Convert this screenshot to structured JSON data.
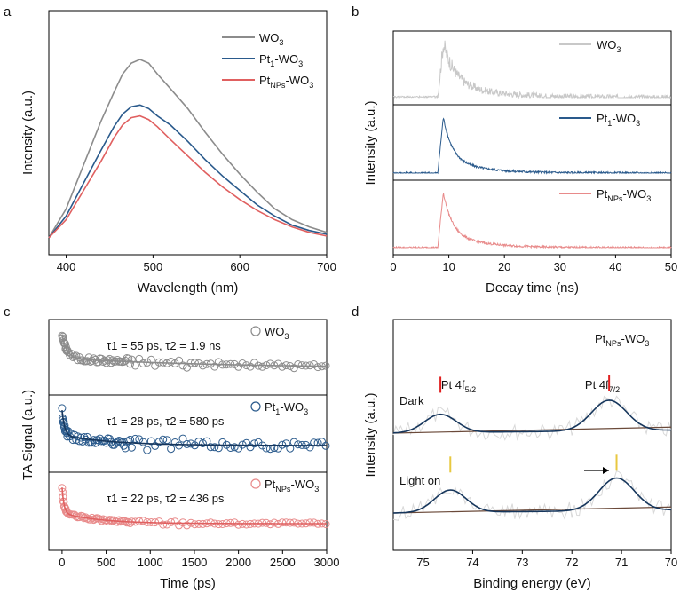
{
  "colors": {
    "gray": "#8c8c8c",
    "lightgray": "#c8c8c8",
    "blue": "#2a5a8c",
    "red": "#e06060",
    "redlight": "#e88a8a",
    "navy": "#16365c",
    "brown": "#6b4a3a",
    "vred": "#e02020",
    "vyellow": "#e8c840"
  },
  "chart_data": [
    {
      "panel": "a",
      "type": "line",
      "xlabel": "Wavelength (nm)",
      "ylabel": "Intensity (a.u.)",
      "xlim": [
        380,
        700
      ],
      "xticks": [
        "400",
        "500",
        "600",
        "700"
      ],
      "legend": [
        {
          "base": "WO",
          "sub": "3",
          "rest": "",
          "sub2": ""
        },
        {
          "base": "Pt",
          "sub": "1",
          "rest": "-WO",
          "sub2": "3"
        },
        {
          "base": "Pt",
          "sub": "NPs",
          "rest": "-WO",
          "sub2": "3"
        }
      ],
      "series": [
        {
          "name": "WO3",
          "color": "gray",
          "x": [
            380,
            400,
            420,
            440,
            455,
            465,
            475,
            485,
            495,
            505,
            520,
            540,
            560,
            580,
            600,
            620,
            640,
            660,
            680,
            700
          ],
          "y": [
            0.02,
            0.18,
            0.42,
            0.66,
            0.82,
            0.92,
            0.98,
            1.0,
            0.98,
            0.92,
            0.84,
            0.73,
            0.6,
            0.48,
            0.37,
            0.27,
            0.18,
            0.12,
            0.08,
            0.05
          ]
        },
        {
          "name": "Pt1-WO3",
          "color": "blue",
          "x": [
            380,
            400,
            420,
            440,
            455,
            465,
            475,
            485,
            495,
            505,
            520,
            540,
            560,
            580,
            600,
            620,
            640,
            660,
            680,
            700
          ],
          "y": [
            0.02,
            0.14,
            0.32,
            0.5,
            0.63,
            0.7,
            0.74,
            0.75,
            0.73,
            0.69,
            0.64,
            0.55,
            0.45,
            0.36,
            0.28,
            0.2,
            0.14,
            0.09,
            0.06,
            0.04
          ]
        },
        {
          "name": "PtNPs-WO3",
          "color": "red",
          "x": [
            380,
            400,
            420,
            440,
            455,
            465,
            475,
            485,
            495,
            505,
            520,
            540,
            560,
            580,
            600,
            620,
            640,
            660,
            680,
            700
          ],
          "y": [
            0.02,
            0.12,
            0.28,
            0.44,
            0.57,
            0.64,
            0.68,
            0.69,
            0.67,
            0.63,
            0.56,
            0.47,
            0.38,
            0.3,
            0.23,
            0.17,
            0.12,
            0.08,
            0.05,
            0.03
          ]
        }
      ]
    },
    {
      "panel": "b",
      "type": "line",
      "xlabel": "Decay time (ns)",
      "ylabel": "Intensity (a.u.)",
      "xlim": [
        0,
        50
      ],
      "xticks": [
        "0",
        "10",
        "20",
        "30",
        "40",
        "50"
      ],
      "series": [
        {
          "name": "WO3",
          "color": "lightgray",
          "label": {
            "base": "WO",
            "sub": "3",
            "rest": "",
            "sub2": ""
          },
          "onset": 8,
          "peak": 9,
          "tau": 2.2,
          "noise": 0.25
        },
        {
          "name": "Pt1-WO3",
          "color": "blue",
          "label": {
            "base": "Pt",
            "sub": "1",
            "rest": "-WO",
            "sub2": "3"
          },
          "onset": 8,
          "peak": 9,
          "tau": 1.6,
          "noise": 0.04
        },
        {
          "name": "PtNPs-WO3",
          "color": "redlight",
          "label": {
            "base": "Pt",
            "sub": "NPs",
            "rest": "-WO",
            "sub2": "3"
          },
          "onset": 8,
          "peak": 9,
          "tau": 1.6,
          "noise": 0.04
        }
      ]
    },
    {
      "panel": "c",
      "type": "scatter",
      "xlabel": "Time (ps)",
      "ylabel": "TA Signal (a.u.)",
      "xlim": [
        -150,
        3000
      ],
      "xticks": [
        "0",
        "500",
        "1000",
        "1500",
        "2000",
        "2500",
        "3000"
      ],
      "series": [
        {
          "name": "WO3",
          "color": "gray",
          "label": {
            "base": "WO",
            "sub": "3",
            "rest": "",
            "sub2": ""
          },
          "tau1": 55,
          "tau2": 1900,
          "text": "τ1 = 55 ps, τ2 =  1.9 ns",
          "scatter": 0.12
        },
        {
          "name": "Pt1-WO3",
          "color": "blue",
          "label": {
            "base": "Pt",
            "sub": "1",
            "rest": "-WO",
            "sub2": "3"
          },
          "tau1": 28,
          "tau2": 580,
          "text": "τ1 = 28 ps, τ2 =  580 ps",
          "scatter": 0.18
        },
        {
          "name": "PtNPs-WO3",
          "color": "redlight",
          "label": {
            "base": "Pt",
            "sub": "NPs",
            "rest": "-WO",
            "sub2": "3"
          },
          "tau1": 22,
          "tau2": 436,
          "text": "τ1 = 22 ps, τ2 =  436 ps",
          "scatter": 0.06
        }
      ]
    },
    {
      "panel": "d",
      "type": "line",
      "title": {
        "base": "Pt",
        "sub": "NPs",
        "rest": "-WO",
        "sub2": "3"
      },
      "xlabel": "Binding energy (eV)",
      "ylabel": "Intensity (a.u.)",
      "xlim": [
        75.6,
        70
      ],
      "xticks": [
        "75",
        "74",
        "73",
        "72",
        "71",
        "70"
      ],
      "peaks": [
        {
          "label": "Pt 4f",
          "sub": "5/2",
          "center": 74.6
        },
        {
          "label": "Pt 4f",
          "sub": "7/2",
          "center": 71.2
        }
      ],
      "spectra": [
        {
          "name": "Dark",
          "centers": [
            74.65,
            71.25
          ],
          "heights": [
            0.45,
            0.75
          ],
          "marker": "vred"
        },
        {
          "name": "Light on",
          "centers": [
            74.45,
            71.1
          ],
          "heights": [
            0.55,
            0.8
          ],
          "marker": "vyellow"
        }
      ]
    }
  ]
}
